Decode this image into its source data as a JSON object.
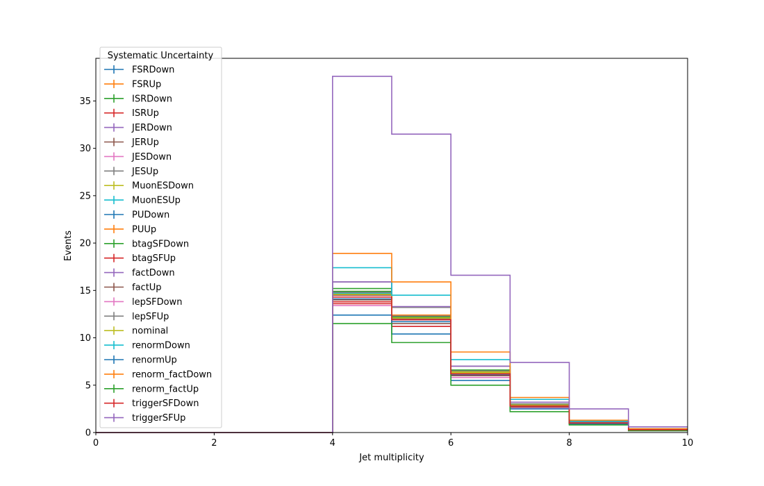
{
  "chart_data": {
    "type": "line",
    "step": true,
    "xlabel": "Jet multiplicity",
    "ylabel": "Events",
    "xlim": [
      0,
      10
    ],
    "ylim": [
      0,
      39.5
    ],
    "xticks": [
      0,
      2,
      4,
      6,
      8,
      10
    ],
    "yticks": [
      0,
      5,
      10,
      15,
      20,
      25,
      30,
      35
    ],
    "grid": false,
    "legend": {
      "title": "Systematic Uncertainty",
      "placement": "upper-left"
    },
    "bin_edges": [
      0,
      1,
      2,
      3,
      4,
      5,
      6,
      7,
      8,
      9,
      10
    ],
    "series": [
      {
        "name": "FSRDown",
        "color": "#1f77b4",
        "values": [
          0,
          0,
          0,
          0,
          14.7,
          12.0,
          6.3,
          2.9,
          1.0,
          0.3
        ]
      },
      {
        "name": "FSRUp",
        "color": "#ff7f0e",
        "values": [
          0,
          0,
          0,
          0,
          14.5,
          12.3,
          6.5,
          2.9,
          1.1,
          0.3
        ]
      },
      {
        "name": "ISRDown",
        "color": "#2ca02c",
        "values": [
          0,
          0,
          0,
          0,
          15.2,
          12.1,
          6.4,
          3.0,
          1.1,
          0.3
        ]
      },
      {
        "name": "ISRUp",
        "color": "#d62728",
        "values": [
          0,
          0,
          0,
          0,
          13.8,
          11.9,
          6.2,
          2.8,
          1.0,
          0.3
        ]
      },
      {
        "name": "JERDown",
        "color": "#9467bd",
        "values": [
          0,
          0,
          0,
          0,
          14.6,
          12.2,
          6.4,
          2.9,
          1.0,
          0.3
        ]
      },
      {
        "name": "JERUp",
        "color": "#8c564b",
        "values": [
          0,
          0,
          0,
          0,
          14.5,
          12.0,
          6.3,
          2.9,
          1.0,
          0.3
        ]
      },
      {
        "name": "JESDown",
        "color": "#e377c2",
        "values": [
          0,
          0,
          0,
          0,
          13.4,
          11.2,
          5.8,
          2.6,
          0.9,
          0.2
        ]
      },
      {
        "name": "JESUp",
        "color": "#7f7f7f",
        "values": [
          0,
          0,
          0,
          0,
          15.9,
          13.2,
          7.0,
          3.2,
          1.2,
          0.3
        ]
      },
      {
        "name": "MuonESDown",
        "color": "#bcbd22",
        "values": [
          0,
          0,
          0,
          0,
          14.6,
          12.1,
          6.3,
          2.9,
          1.0,
          0.3
        ]
      },
      {
        "name": "MuonESUp",
        "color": "#17becf",
        "values": [
          0,
          0,
          0,
          0,
          14.7,
          12.2,
          6.4,
          3.0,
          1.0,
          0.3
        ]
      },
      {
        "name": "PUDown",
        "color": "#1f77b4",
        "values": [
          0,
          0,
          0,
          0,
          14.1,
          11.7,
          6.1,
          2.8,
          1.0,
          0.3
        ]
      },
      {
        "name": "PUUp",
        "color": "#ff7f0e",
        "values": [
          0,
          0,
          0,
          0,
          14.9,
          12.4,
          6.5,
          3.0,
          1.1,
          0.3
        ]
      },
      {
        "name": "btagSFDown",
        "color": "#2ca02c",
        "values": [
          0,
          0,
          0,
          0,
          14.9,
          12.2,
          6.6,
          3.0,
          1.1,
          0.3
        ]
      },
      {
        "name": "btagSFUp",
        "color": "#d62728",
        "values": [
          0,
          0,
          0,
          0,
          13.6,
          11.2,
          6.0,
          2.7,
          0.9,
          0.2
        ]
      },
      {
        "name": "factDown",
        "color": "#9467bd",
        "values": [
          0,
          0,
          0,
          0,
          15.9,
          13.3,
          7.0,
          3.2,
          1.2,
          0.3
        ]
      },
      {
        "name": "factUp",
        "color": "#8c564b",
        "values": [
          0,
          0,
          0,
          0,
          14.0,
          11.5,
          6.0,
          2.7,
          0.9,
          0.2
        ]
      },
      {
        "name": "lepSFDown",
        "color": "#e377c2",
        "values": [
          0,
          0,
          0,
          0,
          14.3,
          11.9,
          6.2,
          2.8,
          1.0,
          0.3
        ]
      },
      {
        "name": "lepSFUp",
        "color": "#7f7f7f",
        "values": [
          0,
          0,
          0,
          0,
          14.8,
          12.3,
          6.5,
          3.0,
          1.1,
          0.3
        ]
      },
      {
        "name": "nominal",
        "color": "#bcbd22",
        "values": [
          0,
          0,
          0,
          0,
          14.6,
          12.1,
          6.4,
          2.9,
          1.0,
          0.3
        ]
      },
      {
        "name": "renormDown",
        "color": "#17becf",
        "values": [
          0,
          0,
          0,
          0,
          17.4,
          14.5,
          7.7,
          3.5,
          1.2,
          0.4
        ]
      },
      {
        "name": "renormUp",
        "color": "#1f77b4",
        "values": [
          0,
          0,
          0,
          0,
          12.4,
          10.4,
          5.5,
          2.5,
          0.9,
          0.2
        ]
      },
      {
        "name": "renorm_factDown",
        "color": "#ff7f0e",
        "values": [
          0,
          0,
          0,
          0,
          18.9,
          15.9,
          8.5,
          3.7,
          1.3,
          0.4
        ]
      },
      {
        "name": "renorm_factUp",
        "color": "#2ca02c",
        "values": [
          0,
          0,
          0,
          0,
          11.5,
          9.5,
          5.0,
          2.2,
          0.8,
          0.2
        ]
      },
      {
        "name": "triggerSFDown",
        "color": "#d62728",
        "values": [
          0,
          0,
          0,
          0,
          14.3,
          11.9,
          6.2,
          2.8,
          1.0,
          0.3
        ]
      },
      {
        "name": "triggerSFUp",
        "color": "#9467bd",
        "values": [
          0,
          0,
          0,
          0,
          37.6,
          31.5,
          16.6,
          7.4,
          2.5,
          0.6
        ]
      }
    ]
  }
}
